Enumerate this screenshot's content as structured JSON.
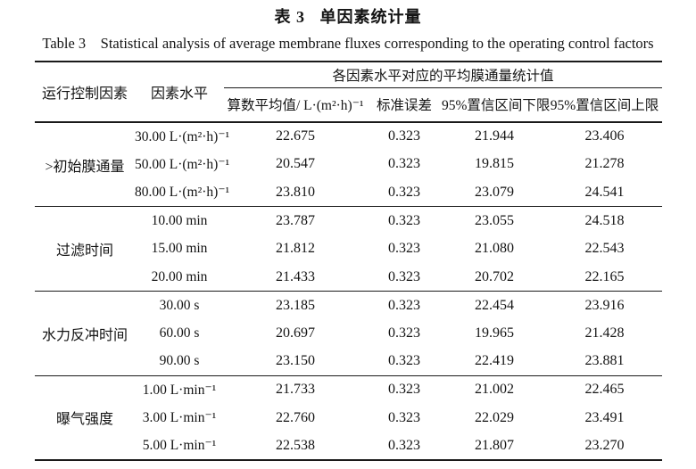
{
  "page": {
    "title_cn": "表 3   单因素统计量",
    "title_en": "Table 3    Statistical analysis of average membrane fluxes corresponding to the operating control factors"
  },
  "table": {
    "header": {
      "factor": "运行控制因素",
      "level": "因素水平",
      "stats_group": "各因素水平对应的平均膜通量统计值",
      "columns": {
        "mean": "算数平均值/ L·(m²·h)⁻¹",
        "se": "标准误差",
        "ci_lower": "95%置信区间下限",
        "ci_upper": "95%置信区间上限"
      }
    },
    "groups": [
      {
        "factor": ">初始膜通量",
        "rows": [
          {
            "level": "30.00 L·(m²·h)⁻¹",
            "mean": "22.675",
            "se": "0.323",
            "ci_lower": "21.944",
            "ci_upper": "23.406"
          },
          {
            "level": "50.00 L·(m²·h)⁻¹",
            "mean": "20.547",
            "se": "0.323",
            "ci_lower": "19.815",
            "ci_upper": "21.278"
          },
          {
            "level": "80.00 L·(m²·h)⁻¹",
            "mean": "23.810",
            "se": "0.323",
            "ci_lower": "23.079",
            "ci_upper": "24.541"
          }
        ]
      },
      {
        "factor": "过滤时间",
        "rows": [
          {
            "level": "10.00 min",
            "mean": "23.787",
            "se": "0.323",
            "ci_lower": "23.055",
            "ci_upper": "24.518"
          },
          {
            "level": "15.00 min",
            "mean": "21.812",
            "se": "0.323",
            "ci_lower": "21.080",
            "ci_upper": "22.543"
          },
          {
            "level": "20.00 min",
            "mean": "21.433",
            "se": "0.323",
            "ci_lower": "20.702",
            "ci_upper": "22.165"
          }
        ]
      },
      {
        "factor": "水力反冲时间",
        "rows": [
          {
            "level": "30.00 s",
            "mean": "23.185",
            "se": "0.323",
            "ci_lower": "22.454",
            "ci_upper": "23.916"
          },
          {
            "level": "60.00 s",
            "mean": "20.697",
            "se": "0.323",
            "ci_lower": "19.965",
            "ci_upper": "21.428"
          },
          {
            "level": "90.00 s",
            "mean": "23.150",
            "se": "0.323",
            "ci_lower": "22.419",
            "ci_upper": "23.881"
          }
        ]
      },
      {
        "factor": "曝气强度",
        "rows": [
          {
            "level": "1.00 L·min⁻¹",
            "mean": "21.733",
            "se": "0.323",
            "ci_lower": "21.002",
            "ci_upper": "22.465"
          },
          {
            "level": "3.00 L·min⁻¹",
            "mean": "22.760",
            "se": "0.323",
            "ci_lower": "22.029",
            "ci_upper": "23.491"
          },
          {
            "level": "5.00 L·min⁻¹",
            "mean": "22.538",
            "se": "0.323",
            "ci_lower": "21.807",
            "ci_upper": "23.270"
          }
        ]
      }
    ]
  }
}
